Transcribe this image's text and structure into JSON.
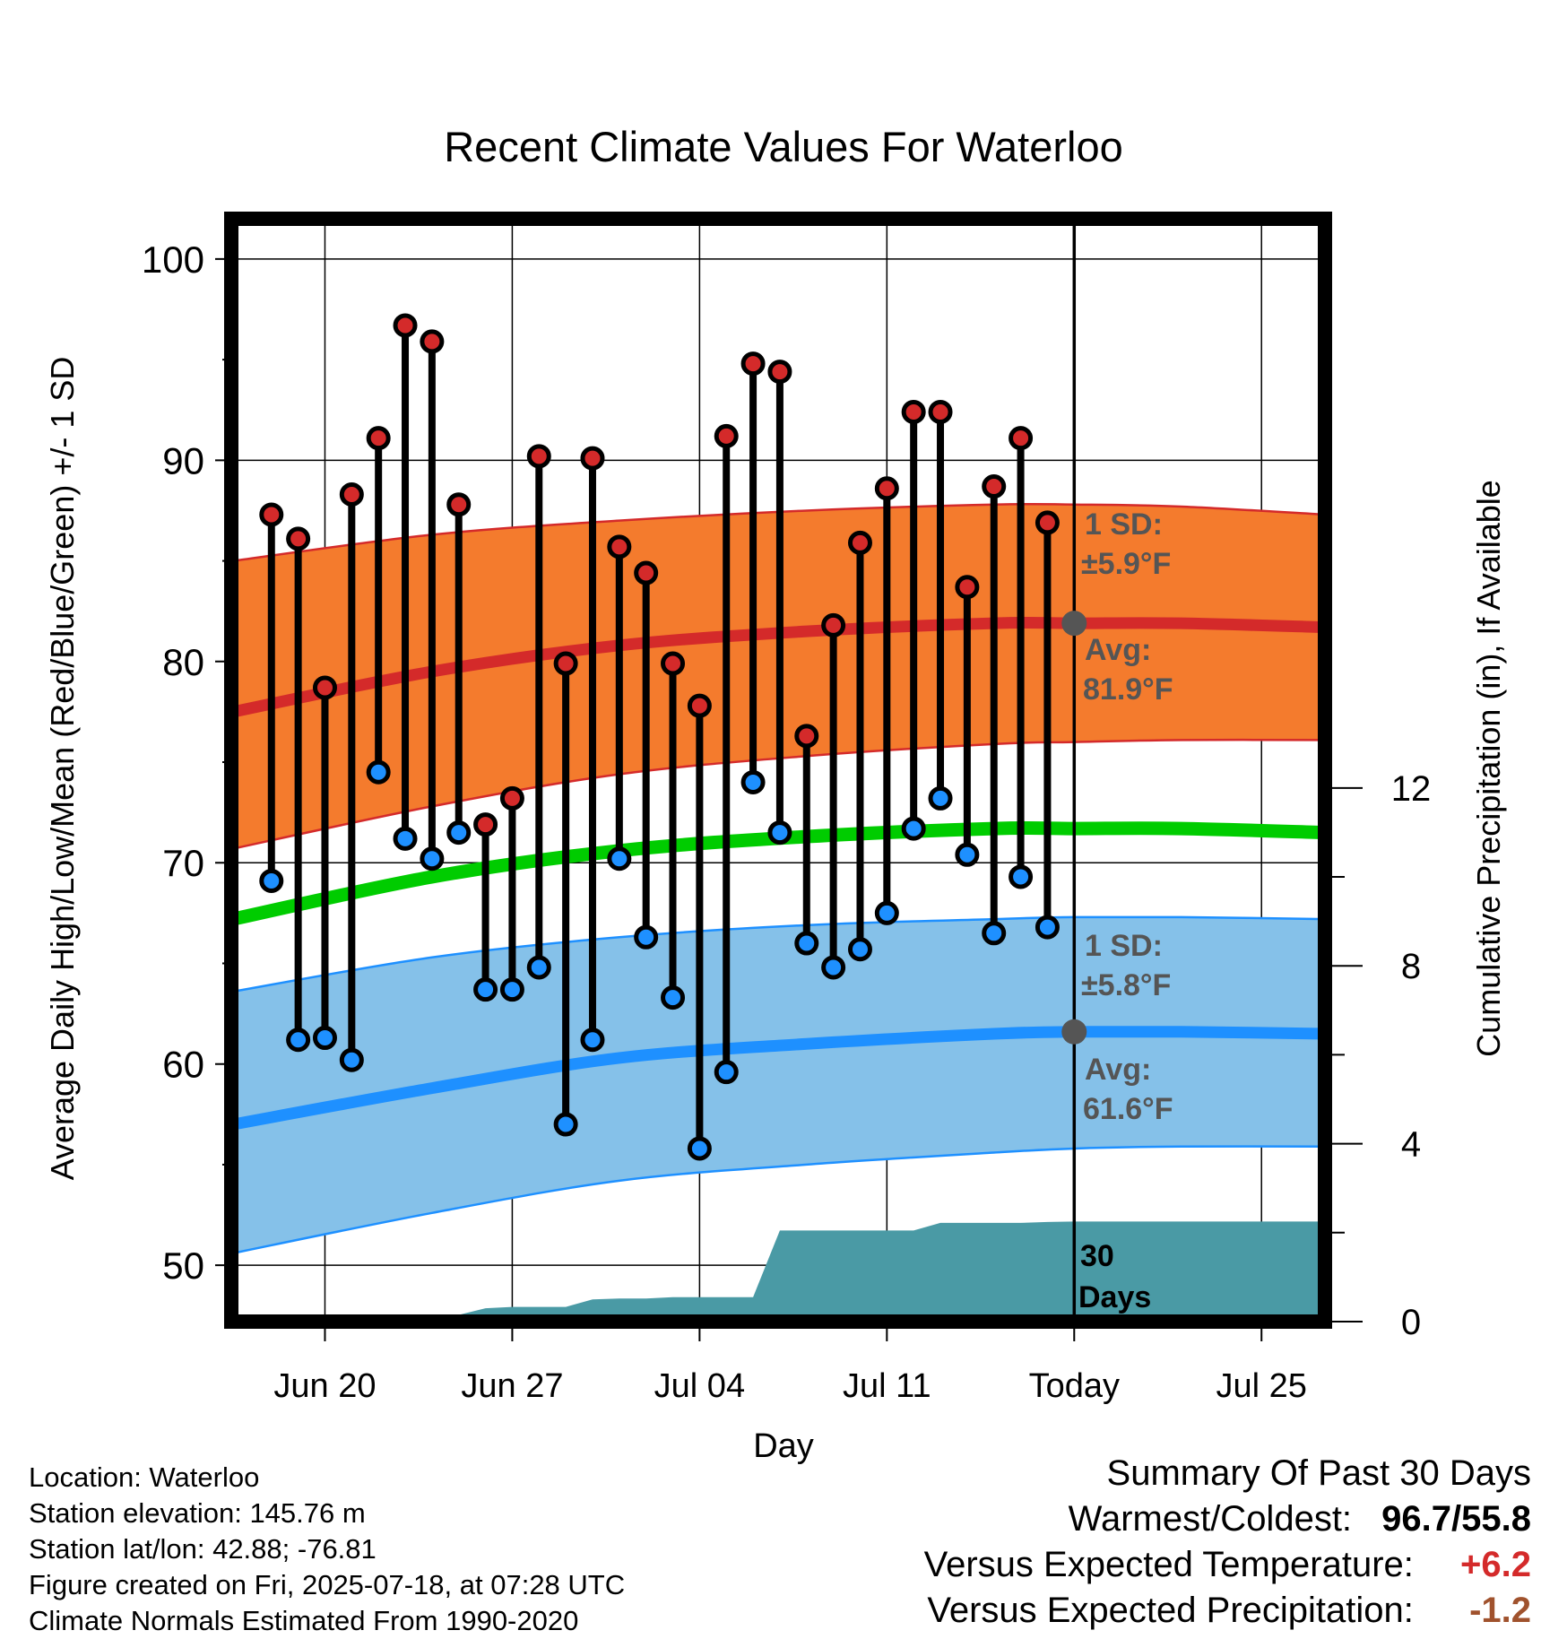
{
  "chart_data": {
    "type": "line",
    "title": "Recent Climate Values For Waterloo",
    "xlabel": "Day",
    "ylabel": "Average Daily High/Low/Mean (Red/Blue/Green) +/- 1 SD",
    "y2label": "Cumulative Precipitation (in), If Available",
    "x_tick_labels": [
      "Jun 20",
      "Jun 27",
      "Jul 04",
      "Jul 11",
      "Today",
      "Jul 25"
    ],
    "y_ticks": [
      50,
      60,
      70,
      80,
      90,
      100
    ],
    "y2_ticks": [
      0,
      4,
      8,
      12
    ],
    "ylim": [
      47.2,
      102
    ],
    "y2lim": [
      0,
      24.8
    ],
    "colors": {
      "high_band": "#f47b2d",
      "high_line": "#d42a2a",
      "low_band": "#85c1e9",
      "low_line": "#1e90ff",
      "mean_line": "#00cc00",
      "precip": "#4a9aa5",
      "high_dot": "#d42a2a",
      "low_dot": "#1e90ff"
    },
    "daily": {
      "dates": [
        "Jun 18",
        "Jun 19",
        "Jun 20",
        "Jun 21",
        "Jun 22",
        "Jun 23",
        "Jun 24",
        "Jun 25",
        "Jun 26",
        "Jun 27",
        "Jun 28",
        "Jun 29",
        "Jun 30",
        "Jul 01",
        "Jul 02",
        "Jul 03",
        "Jul 04",
        "Jul 05",
        "Jul 06",
        "Jul 07",
        "Jul 08",
        "Jul 09",
        "Jul 10",
        "Jul 11",
        "Jul 12",
        "Jul 13",
        "Jul 14",
        "Jul 15",
        "Jul 16",
        "Jul 17"
      ],
      "high": [
        87.3,
        86.1,
        78.7,
        88.3,
        91.1,
        96.7,
        95.9,
        87.8,
        71.9,
        73.2,
        90.2,
        79.9,
        90.1,
        85.7,
        84.4,
        79.9,
        77.8,
        91.2,
        94.8,
        94.4,
        76.3,
        81.8,
        85.9,
        88.6,
        92.4,
        92.4,
        83.7,
        88.7,
        91.1,
        86.9
      ],
      "low": [
        69.1,
        61.2,
        61.3,
        60.2,
        74.5,
        71.2,
        70.2,
        71.5,
        63.7,
        63.7,
        64.8,
        57.0,
        61.2,
        70.2,
        66.3,
        63.3,
        55.8,
        59.6,
        74.0,
        71.5,
        66.0,
        64.8,
        65.7,
        67.5,
        71.7,
        73.2,
        70.4,
        66.5,
        69.3,
        66.8
      ]
    },
    "normals": {
      "days": [
        "Jun 17",
        "Jun 24",
        "Jul 01",
        "Jul 08",
        "Jul 15",
        "Jul 18",
        "Jul 22",
        "Jul 28"
      ],
      "avg_high": [
        77.5,
        79.5,
        80.8,
        81.5,
        81.9,
        81.9,
        81.9,
        81.7
      ],
      "high_upper": [
        85.0,
        86.3,
        87.0,
        87.5,
        87.8,
        87.8,
        87.7,
        87.3
      ],
      "high_lower": [
        70.7,
        72.8,
        74.4,
        75.3,
        75.9,
        76.0,
        76.1,
        76.1
      ],
      "avg_mean": [
        67.2,
        69.3,
        70.6,
        71.3,
        71.7,
        71.7,
        71.7,
        71.5
      ],
      "avg_low": [
        57.0,
        58.8,
        60.3,
        61.0,
        61.5,
        61.6,
        61.6,
        61.5
      ],
      "low_upper": [
        63.6,
        65.3,
        66.3,
        66.9,
        67.2,
        67.3,
        67.3,
        67.2
      ],
      "low_lower": [
        50.6,
        52.6,
        54.2,
        55.0,
        55.6,
        55.8,
        55.9,
        55.9
      ]
    },
    "precip": {
      "days": [
        "Jun 17",
        "Jun 18",
        "Jun 19",
        "Jun 20",
        "Jun 21",
        "Jun 22",
        "Jun 23",
        "Jun 24",
        "Jun 25",
        "Jun 26",
        "Jun 27",
        "Jun 28",
        "Jun 29",
        "Jun 30",
        "Jul 01",
        "Jul 02",
        "Jul 03",
        "Jul 04",
        "Jul 05",
        "Jul 06",
        "Jul 07",
        "Jul 08",
        "Jul 09",
        "Jul 10",
        "Jul 11",
        "Jul 12",
        "Jul 13",
        "Jul 14",
        "Jul 15",
        "Jul 16",
        "Jul 17",
        "Jul 18",
        "Jul 28"
      ],
      "cumulative": [
        0,
        0,
        0.1,
        0.15,
        0.15,
        0.15,
        0.15,
        0.15,
        0.15,
        0.3,
        0.33,
        0.33,
        0.33,
        0.5,
        0.52,
        0.52,
        0.55,
        0.55,
        0.55,
        0.55,
        2.05,
        2.05,
        2.05,
        2.05,
        2.05,
        2.05,
        2.22,
        2.22,
        2.22,
        2.22,
        2.24,
        2.25,
        2.25
      ]
    },
    "annotations": {
      "high_sd_label": "1 SD:",
      "high_sd_value": "±5.9°F",
      "high_avg_label": "Avg:",
      "high_avg_value": "81.9°F",
      "low_sd_label": "1 SD:",
      "low_sd_value": "±5.8°F",
      "low_avg_label": "Avg:",
      "low_avg_value": "61.6°F",
      "days_line1": "30",
      "days_line2": "Days"
    }
  },
  "info": {
    "location": "Location: Waterloo",
    "elevation": "Station elevation: 145.76 m",
    "latlon": "Station lat/lon: 42.88; -76.81",
    "created": "Figure created on Fri, 2025-07-18, at 07:28 UTC",
    "normals": "Climate Normals Estimated From 1990-2020"
  },
  "summary": {
    "title": "Summary Of Past 30 Days",
    "warmest_label": "Warmest/Coldest:",
    "warmest_value": "96.7/55.8",
    "temp_label": "Versus Expected Temperature:",
    "temp_value": "+6.2",
    "precip_label": "Versus Expected Precipitation:",
    "precip_value": "-1.2"
  }
}
